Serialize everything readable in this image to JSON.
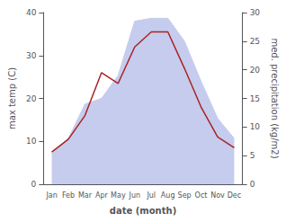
{
  "chart_data": {
    "type": "line",
    "xlabel": "date (month)",
    "ylabel": "max temp (C)",
    "y2label": "med. precipitation (kg/m2)",
    "categories": [
      "Jan",
      "Feb",
      "Mar",
      "Apr",
      "May",
      "Jun",
      "Jul",
      "Aug",
      "Sep",
      "Oct",
      "Nov",
      "Dec"
    ],
    "series": [
      {
        "type": "area",
        "axis": "y2",
        "color": "#c5ccee",
        "values": [
          5.5,
          8.0,
          14.0,
          15.0,
          19.0,
          28.5,
          29.0,
          29.0,
          25.0,
          18.0,
          11.5,
          8.0
        ]
      },
      {
        "type": "line",
        "axis": "y",
        "color": "#aa2222",
        "values": [
          7.5,
          10.5,
          16.0,
          26.0,
          23.5,
          32.0,
          35.5,
          35.5,
          27.0,
          18.0,
          11.0,
          8.5
        ]
      }
    ],
    "ylim": [
      0,
      40
    ],
    "yticks": [
      0,
      10,
      20,
      30,
      40
    ],
    "y2lim": [
      0,
      30
    ],
    "y2ticks": [
      0,
      5,
      10,
      15,
      20,
      25,
      30
    ],
    "grid": false
  }
}
